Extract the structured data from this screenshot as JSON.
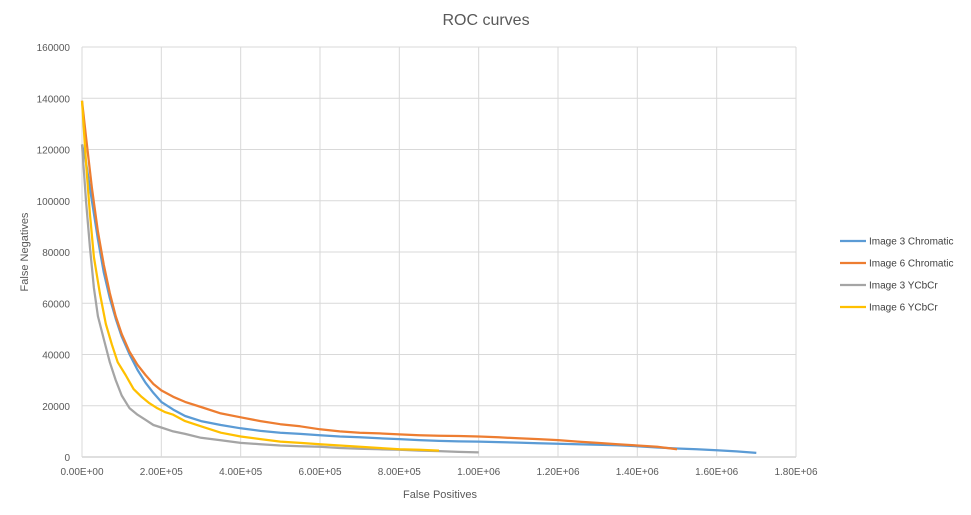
{
  "chart_data": {
    "type": "line",
    "title": "ROC curves",
    "xlabel": "False Positives",
    "ylabel": "False Negatives",
    "xlim": [
      0,
      1800000
    ],
    "ylim": [
      0,
      160000
    ],
    "x_ticks": [
      0,
      200000,
      400000,
      600000,
      800000,
      1000000,
      1200000,
      1400000,
      1600000,
      1800000
    ],
    "x_tick_labels": [
      "0.00E+00",
      "2.00E+05",
      "4.00E+05",
      "6.00E+05",
      "8.00E+05",
      "1.00E+06",
      "1.20E+06",
      "1.40E+06",
      "1.60E+06",
      "1.80E+06"
    ],
    "y_ticks": [
      0,
      20000,
      40000,
      60000,
      80000,
      100000,
      120000,
      140000,
      160000
    ],
    "y_tick_labels": [
      "0",
      "20000",
      "40000",
      "60000",
      "80000",
      "100000",
      "120000",
      "140000",
      "160000"
    ],
    "grid": "vertical-and-horizontal",
    "legend_position": "right",
    "series": [
      {
        "name": "Image 3 Chromatic",
        "color": "#5b9bd5",
        "points": [
          [
            0,
            122000
          ],
          [
            10000,
            115000
          ],
          [
            25000,
            100000
          ],
          [
            40000,
            85000
          ],
          [
            55000,
            72000
          ],
          [
            70000,
            62000
          ],
          [
            85000,
            54000
          ],
          [
            100000,
            47000
          ],
          [
            120000,
            40000
          ],
          [
            140000,
            34000
          ],
          [
            160000,
            29000
          ],
          [
            180000,
            25000
          ],
          [
            200000,
            21500
          ],
          [
            230000,
            18500
          ],
          [
            260000,
            16000
          ],
          [
            300000,
            14000
          ],
          [
            350000,
            12500
          ],
          [
            400000,
            11200
          ],
          [
            450000,
            10200
          ],
          [
            500000,
            9500
          ],
          [
            550000,
            9000
          ],
          [
            600000,
            8500
          ],
          [
            650000,
            8000
          ],
          [
            700000,
            7700
          ],
          [
            750000,
            7300
          ],
          [
            800000,
            7000
          ],
          [
            850000,
            6600
          ],
          [
            900000,
            6300
          ],
          [
            950000,
            6100
          ],
          [
            1000000,
            6000
          ],
          [
            1050000,
            5800
          ],
          [
            1100000,
            5600
          ],
          [
            1150000,
            5400
          ],
          [
            1200000,
            5200
          ],
          [
            1250000,
            5000
          ],
          [
            1300000,
            4800
          ],
          [
            1350000,
            4600
          ],
          [
            1400000,
            4200
          ],
          [
            1450000,
            3700
          ],
          [
            1500000,
            3300
          ],
          [
            1550000,
            3000
          ],
          [
            1600000,
            2600
          ],
          [
            1650000,
            2200
          ],
          [
            1700000,
            1600
          ]
        ]
      },
      {
        "name": "Image 6 Chromatic",
        "color": "#ed7d31",
        "points": [
          [
            0,
            139000
          ],
          [
            10000,
            125000
          ],
          [
            25000,
            105000
          ],
          [
            40000,
            88000
          ],
          [
            55000,
            75000
          ],
          [
            70000,
            64000
          ],
          [
            85000,
            55000
          ],
          [
            100000,
            48000
          ],
          [
            120000,
            41000
          ],
          [
            140000,
            36000
          ],
          [
            160000,
            32000
          ],
          [
            180000,
            28500
          ],
          [
            200000,
            26000
          ],
          [
            230000,
            23500
          ],
          [
            260000,
            21500
          ],
          [
            300000,
            19500
          ],
          [
            350000,
            17000
          ],
          [
            400000,
            15500
          ],
          [
            450000,
            14000
          ],
          [
            500000,
            12800
          ],
          [
            550000,
            12000
          ],
          [
            600000,
            10800
          ],
          [
            650000,
            10000
          ],
          [
            700000,
            9500
          ],
          [
            750000,
            9200
          ],
          [
            800000,
            8800
          ],
          [
            850000,
            8500
          ],
          [
            900000,
            8300
          ],
          [
            950000,
            8200
          ],
          [
            1000000,
            8000
          ],
          [
            1050000,
            7700
          ],
          [
            1100000,
            7300
          ],
          [
            1150000,
            7000
          ],
          [
            1200000,
            6600
          ],
          [
            1250000,
            6000
          ],
          [
            1300000,
            5500
          ],
          [
            1350000,
            5000
          ],
          [
            1400000,
            4500
          ],
          [
            1450000,
            4000
          ],
          [
            1500000,
            3000
          ]
        ]
      },
      {
        "name": "Image 3 YCbCr",
        "color": "#a5a5a5",
        "points": [
          [
            0,
            122000
          ],
          [
            10000,
            100000
          ],
          [
            20000,
            82000
          ],
          [
            30000,
            66000
          ],
          [
            40000,
            55000
          ],
          [
            55000,
            46000
          ],
          [
            70000,
            37000
          ],
          [
            85000,
            30000
          ],
          [
            100000,
            24000
          ],
          [
            120000,
            19000
          ],
          [
            140000,
            16500
          ],
          [
            160000,
            14500
          ],
          [
            180000,
            12500
          ],
          [
            200000,
            11500
          ],
          [
            230000,
            10000
          ],
          [
            260000,
            9000
          ],
          [
            300000,
            7500
          ],
          [
            350000,
            6500
          ],
          [
            400000,
            5500
          ],
          [
            450000,
            5000
          ],
          [
            500000,
            4500
          ],
          [
            550000,
            4200
          ],
          [
            600000,
            4000
          ],
          [
            650000,
            3500
          ],
          [
            700000,
            3200
          ],
          [
            750000,
            3000
          ],
          [
            800000,
            2800
          ],
          [
            850000,
            2500
          ],
          [
            900000,
            2300
          ],
          [
            950000,
            2000
          ],
          [
            1000000,
            1800
          ]
        ]
      },
      {
        "name": "Image 6 YCbCr",
        "color": "#ffc000",
        "points": [
          [
            0,
            139000
          ],
          [
            10000,
            115000
          ],
          [
            20000,
            95000
          ],
          [
            30000,
            78000
          ],
          [
            45000,
            64000
          ],
          [
            60000,
            52000
          ],
          [
            75000,
            44000
          ],
          [
            90000,
            37000
          ],
          [
            110000,
            32000
          ],
          [
            130000,
            26500
          ],
          [
            150000,
            23500
          ],
          [
            170000,
            21000
          ],
          [
            190000,
            19000
          ],
          [
            210000,
            17500
          ],
          [
            230000,
            16500
          ],
          [
            260000,
            14000
          ],
          [
            300000,
            12000
          ],
          [
            350000,
            9500
          ],
          [
            400000,
            8000
          ],
          [
            450000,
            7000
          ],
          [
            500000,
            6000
          ],
          [
            550000,
            5500
          ],
          [
            600000,
            5000
          ],
          [
            650000,
            4500
          ],
          [
            700000,
            4000
          ],
          [
            750000,
            3500
          ],
          [
            800000,
            3000
          ],
          [
            850000,
            2800
          ],
          [
            900000,
            2500
          ]
        ]
      }
    ]
  }
}
